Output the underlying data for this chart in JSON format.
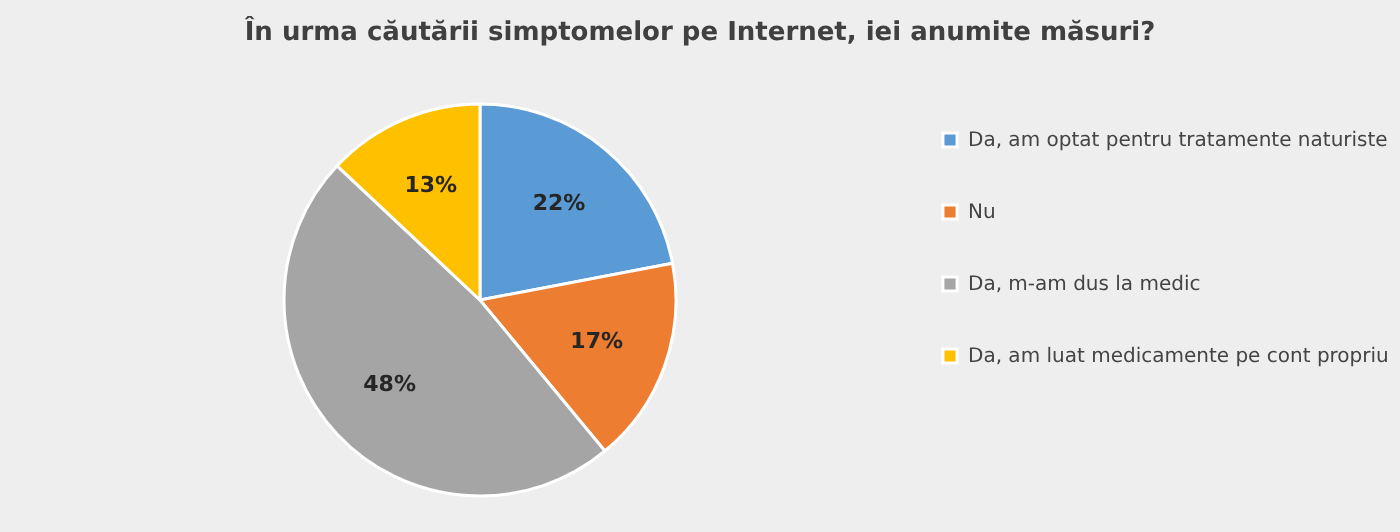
{
  "chart_data": {
    "type": "pie",
    "title": "În urma căutării simptomelor pe Internet, iei anumite măsuri?",
    "categories": [
      "Da, am optat pentru tratamente naturiste",
      "Nu",
      "Da, m-am dus la medic",
      "Da, am luat medicamente pe cont propriu"
    ],
    "values": [
      22,
      17,
      48,
      13
    ],
    "value_labels": [
      "22%",
      "17%",
      "48%",
      "13%"
    ],
    "colors": [
      "#5b9bd5",
      "#ed7d31",
      "#a5a5a5",
      "#ffc000"
    ],
    "legend": "right"
  }
}
